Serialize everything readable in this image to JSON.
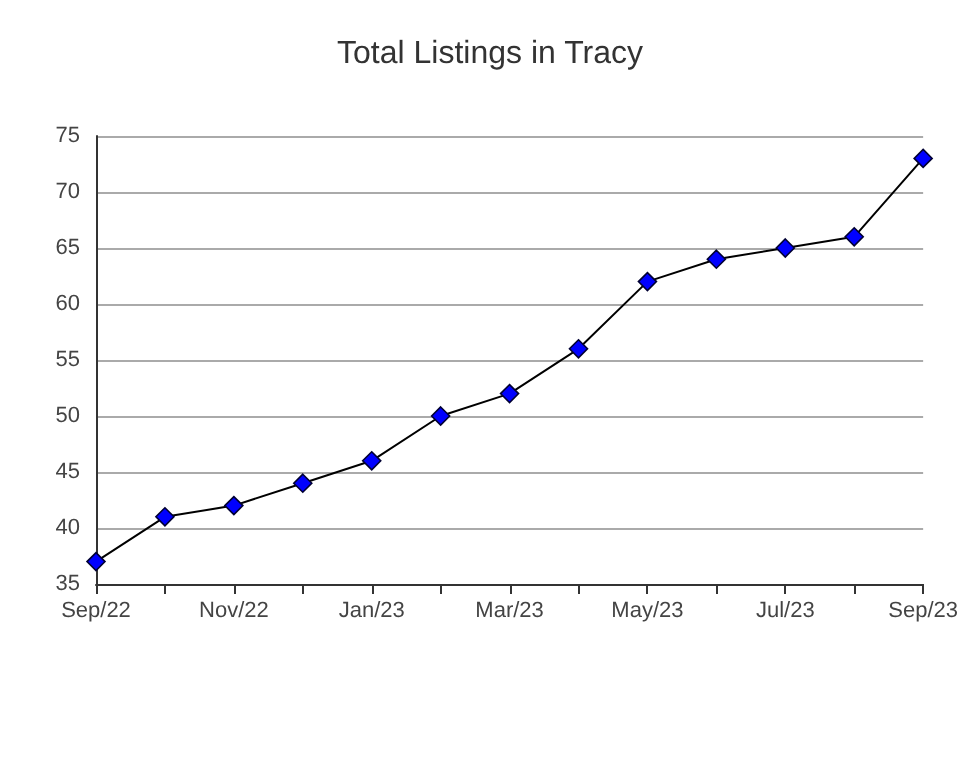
{
  "chart_data": {
    "type": "line",
    "title": "Total Listings in Tracy",
    "categories": [
      "Sep/22",
      null,
      "Nov/22",
      null,
      "Jan/23",
      null,
      "Mar/23",
      null,
      "May/23",
      null,
      "Jul/23",
      null,
      "Sep/23"
    ],
    "series": [
      {
        "color": "#0000ff",
        "values": [
          37,
          41,
          42,
          44,
          46,
          50,
          52,
          56,
          62,
          64,
          65,
          66,
          73
        ]
      }
    ],
    "ylim": [
      35,
      75
    ],
    "yticks": [
      35,
      40,
      45,
      50,
      55,
      60,
      65,
      70,
      75
    ],
    "grid": "y",
    "marker": "diamond",
    "line_style": "solid"
  }
}
